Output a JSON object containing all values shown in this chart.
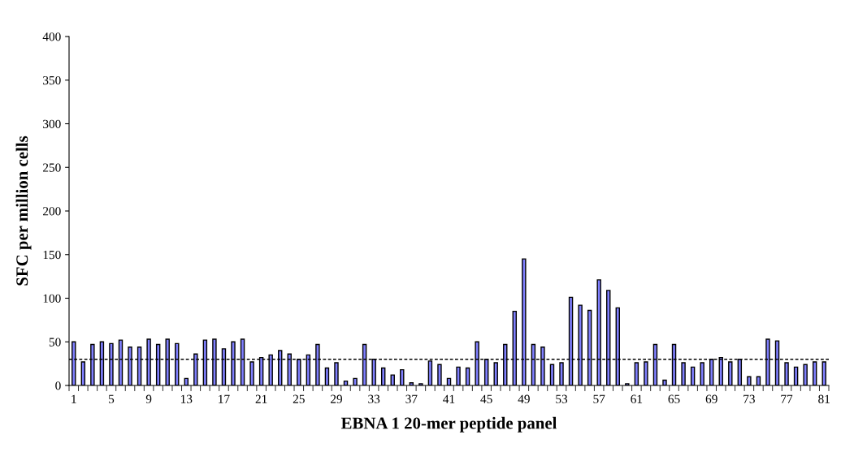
{
  "chart_data": {
    "type": "bar",
    "xlabel": "EBNA 1 20-mer peptide panel",
    "ylabel": "SFC per million cells",
    "categories": [
      "1",
      null,
      null,
      null,
      "5",
      null,
      null,
      null,
      "9",
      null,
      null,
      null,
      "13",
      null,
      null,
      null,
      "17",
      null,
      null,
      null,
      "21",
      null,
      null,
      null,
      "25",
      null,
      null,
      null,
      "29",
      null,
      null,
      null,
      "33",
      null,
      null,
      null,
      "37",
      null,
      null,
      null,
      "41",
      null,
      null,
      null,
      "45",
      null,
      null,
      null,
      "49",
      null,
      null,
      null,
      "53",
      null,
      null,
      null,
      "57",
      null,
      null,
      null,
      "61",
      null,
      null,
      null,
      "65",
      null,
      null,
      null,
      "69",
      null,
      null,
      null,
      "73",
      null,
      null,
      null,
      "77",
      null,
      null,
      null,
      "81"
    ],
    "values": [
      50,
      27,
      47,
      50,
      48,
      52,
      44,
      44,
      53,
      47,
      53,
      48,
      8,
      36,
      52,
      53,
      42,
      50,
      53,
      27,
      32,
      35,
      40,
      36,
      30,
      35,
      47,
      20,
      26,
      5,
      8,
      47,
      30,
      20,
      12,
      18,
      3,
      2,
      28,
      24,
      8,
      21,
      20,
      50,
      30,
      26,
      47,
      85,
      145,
      47,
      44,
      24,
      26,
      101,
      92,
      86,
      121,
      109,
      89,
      2,
      26,
      27,
      47,
      6,
      47,
      26,
      21,
      26,
      30,
      32,
      27,
      30,
      10,
      10,
      53,
      51,
      26,
      21,
      24,
      27,
      27
    ],
    "color": "#8080ff",
    "ylim": [
      0,
      400
    ],
    "yticks": [
      0,
      50,
      100,
      150,
      200,
      250,
      300,
      350,
      400
    ],
    "ref_lines": [
      {
        "axis": "y",
        "value": 30,
        "line_style": "dashed",
        "color": "#000000"
      }
    ],
    "grid": false
  }
}
